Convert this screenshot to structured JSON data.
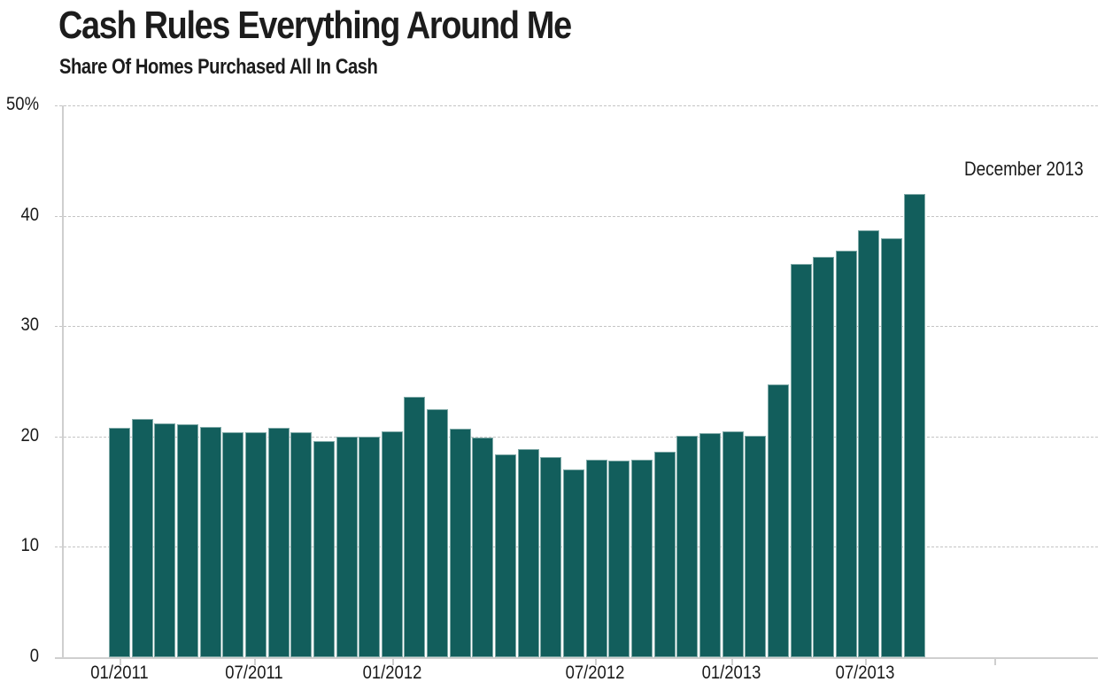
{
  "header": {
    "title": "Cash Rules Everything Around Me",
    "subtitle": "Share Of Homes Purchased All In Cash"
  },
  "axis": {
    "y_ticks": [
      "50%",
      "40",
      "30",
      "20",
      "10",
      "0"
    ],
    "x_ticks": [
      "01/2011",
      "07/2011",
      "01/2012",
      "07/2012",
      "01/2013",
      "07/2013"
    ]
  },
  "annotation": "December 2013",
  "colors": {
    "bar": "#125e5c",
    "grid": "#c4c4c4",
    "axis": "#cfcfcf"
  },
  "chart_data": {
    "type": "bar",
    "title": "Cash Rules Everything Around Me",
    "subtitle": "Share Of Homes Purchased All In Cash",
    "xlabel": "",
    "ylabel": "",
    "ylim": [
      0,
      50
    ],
    "y_ticks": [
      0,
      10,
      20,
      30,
      40,
      50
    ],
    "y_tick_labels": [
      "0",
      "10",
      "20",
      "30",
      "40",
      "50%"
    ],
    "x_tick_labels": [
      "01/2011",
      "07/2011",
      "01/2012",
      "07/2012",
      "01/2013",
      "07/2013"
    ],
    "grid": true,
    "legend": null,
    "annotations": [
      {
        "text": "December 2013",
        "target": "12/2013"
      }
    ],
    "categories": [
      "01/2011",
      "02/2011",
      "03/2011",
      "04/2011",
      "05/2011",
      "06/2011",
      "07/2011",
      "08/2011",
      "09/2011",
      "10/2011",
      "11/2011",
      "12/2011",
      "01/2012",
      "02/2012",
      "03/2012",
      "04/2012",
      "05/2012",
      "06/2012",
      "07/2012",
      "08/2012",
      "09/2012",
      "10/2012",
      "11/2012",
      "12/2012",
      "01/2013",
      "02/2013",
      "03/2013",
      "04/2013",
      "05/2013",
      "06/2013",
      "07/2013",
      "08/2013",
      "09/2013",
      "10/2013",
      "11/2013",
      "12/2013"
    ],
    "values": [
      20.8,
      21.6,
      21.2,
      21.1,
      20.9,
      20.4,
      20.4,
      20.8,
      20.4,
      19.6,
      20.0,
      20.0,
      20.5,
      23.6,
      22.5,
      20.7,
      19.9,
      18.4,
      18.9,
      18.1,
      17.0,
      17.9,
      17.8,
      17.9,
      18.6,
      20.1,
      20.3,
      20.5,
      20.1,
      24.7,
      35.6,
      36.3,
      36.8,
      38.7,
      38.0,
      42.0
    ]
  }
}
